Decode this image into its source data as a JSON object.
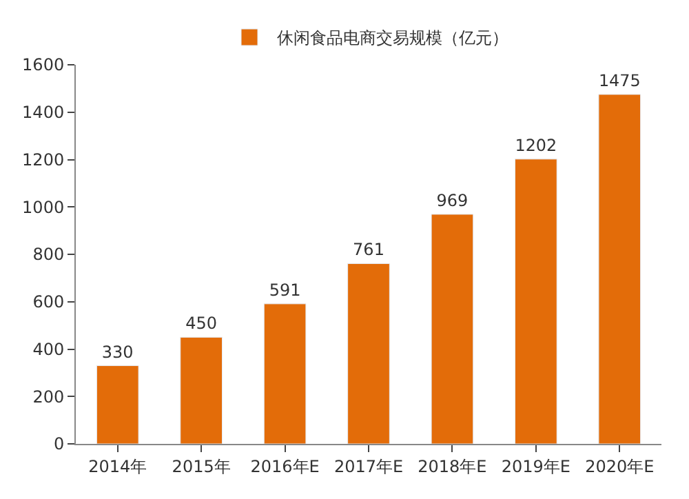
{
  "chart_data": {
    "type": "bar",
    "categories": [
      "2014年",
      "2015年",
      "2016年E",
      "2017年E",
      "2018年E",
      "2019年E",
      "2020年E"
    ],
    "series": [
      {
        "name": "休闲食品电商交易规模（亿元）",
        "color": "#e36c09",
        "values": [
          330,
          450,
          591,
          761,
          969,
          1202,
          1475
        ]
      }
    ],
    "ylim": [
      0,
      1600
    ],
    "yticks": [
      0,
      200,
      400,
      600,
      800,
      1000,
      1200,
      1400,
      1600
    ],
    "legend": "top",
    "data_labels": true
  }
}
